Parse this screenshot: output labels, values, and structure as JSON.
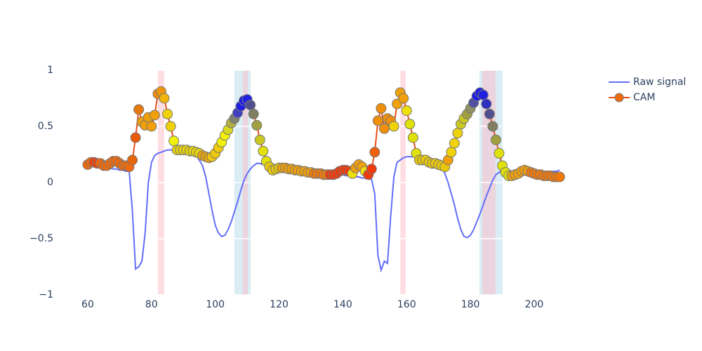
{
  "chart_data": {
    "type": "line",
    "x": [
      60,
      61,
      62,
      63,
      64,
      65,
      66,
      67,
      68,
      69,
      70,
      71,
      72,
      73,
      74,
      75,
      76,
      77,
      78,
      79,
      80,
      81,
      82,
      83,
      84,
      85,
      86,
      87,
      88,
      89,
      90,
      91,
      92,
      93,
      94,
      95,
      96,
      97,
      98,
      99,
      100,
      101,
      102,
      103,
      104,
      105,
      106,
      107,
      108,
      109,
      110,
      111,
      112,
      113,
      114,
      115,
      116,
      117,
      118,
      119,
      120,
      121,
      122,
      123,
      124,
      125,
      126,
      127,
      128,
      129,
      130,
      131,
      132,
      133,
      134,
      135,
      136,
      137,
      138,
      139,
      140,
      141,
      142,
      143,
      144,
      145,
      146,
      147,
      148,
      149,
      150,
      151,
      152,
      153,
      154,
      155,
      156,
      157,
      158,
      159,
      160,
      161,
      162,
      163,
      164,
      165,
      166,
      167,
      168,
      169,
      170,
      171,
      172,
      173,
      174,
      175,
      176,
      177,
      178,
      179,
      180,
      181,
      182,
      183,
      184,
      185,
      186,
      187,
      188,
      189,
      190,
      191,
      192,
      193,
      194,
      195,
      196,
      197,
      198,
      199,
      200,
      201,
      202,
      203,
      204,
      205,
      206,
      207,
      208
    ],
    "series": [
      {
        "name": "Raw signal",
        "color": "#636efa",
        "mode": "lines",
        "values": [
          0.17,
          0.16,
          0.16,
          0.15,
          0.15,
          0.14,
          0.13,
          0.13,
          0.12,
          0.12,
          0.11,
          0.11,
          0.1,
          0.1,
          -0.25,
          -0.77,
          -0.75,
          -0.7,
          -0.45,
          0,
          0.18,
          0.24,
          0.26,
          0.27,
          0.28,
          0.29,
          0.29,
          0.29,
          0.29,
          0.29,
          0.29,
          0.28,
          0.27,
          0.26,
          0.24,
          0.2,
          0.15,
          0.05,
          -0.1,
          -0.25,
          -0.38,
          -0.45,
          -0.48,
          -0.47,
          -0.42,
          -0.35,
          -0.26,
          -0.17,
          -0.07,
          0.02,
          0.08,
          0.12,
          0.15,
          0.17,
          0.17,
          0.16,
          0.15,
          0.14,
          0.13,
          0.13,
          0.13,
          0.12,
          0.12,
          0.12,
          0.11,
          0.11,
          0.11,
          0.1,
          0.1,
          0.1,
          0.1,
          0.09,
          0.09,
          0.09,
          0.09,
          0.08,
          0.08,
          0.08,
          0.08,
          0.08,
          0.07,
          0.06,
          0.06,
          0.05,
          0.05,
          0.05,
          0.04,
          0.04,
          0.03,
          0.03,
          -0.1,
          -0.65,
          -0.78,
          -0.7,
          -0.72,
          -0.3,
          0.05,
          0.18,
          0.2,
          0.22,
          0.23,
          0.23,
          0.23,
          0.23,
          0.23,
          0.23,
          0.22,
          0.21,
          0.2,
          0.19,
          0.17,
          0.13,
          0.08,
          0,
          -0.1,
          -0.2,
          -0.32,
          -0.42,
          -0.48,
          -0.49,
          -0.47,
          -0.42,
          -0.35,
          -0.28,
          -0.2,
          -0.12,
          -0.05,
          0.02,
          0.07,
          0.09,
          0.11,
          0.11,
          0.11,
          0.1,
          0.1,
          0.1,
          0.1,
          0.1,
          0.1,
          0.1,
          0.09,
          0.09,
          0.09,
          0.09,
          0.09,
          0.09,
          0.1,
          0.1,
          0.11
        ]
      },
      {
        "name": "CAM",
        "color": "#e8501a",
        "mode": "lines+markers",
        "marker_line_color": "#777777",
        "values": [
          0.16,
          0.18,
          0.18,
          0.17,
          0.17,
          0.15,
          0.15,
          0.17,
          0.19,
          0.19,
          0.17,
          0.15,
          0.15,
          0.14,
          0.2,
          0.4,
          0.65,
          0.54,
          0.51,
          0.58,
          0.5,
          0.6,
          0.79,
          0.81,
          0.75,
          0.61,
          0.5,
          0.37,
          0.29,
          0.29,
          0.29,
          0.29,
          0.28,
          0.28,
          0.27,
          0.26,
          0.24,
          0.23,
          0.22,
          0.23,
          0.26,
          0.31,
          0.36,
          0.42,
          0.47,
          0.53,
          0.57,
          0.62,
          0.68,
          0.73,
          0.74,
          0.69,
          0.61,
          0.51,
          0.38,
          0.28,
          0.19,
          0.14,
          0.11,
          0.12,
          0.13,
          0.13,
          0.13,
          0.12,
          0.12,
          0.11,
          0.11,
          0.1,
          0.1,
          0.09,
          0.09,
          0.08,
          0.08,
          0.08,
          0.07,
          0.07,
          0.07,
          0.07,
          0.08,
          0.1,
          0.11,
          0.11,
          0.1,
          0.08,
          0.13,
          0.16,
          0.14,
          0.1,
          0.07,
          0.12,
          0.27,
          0.55,
          0.66,
          0.48,
          0.57,
          0.55,
          0.5,
          0.7,
          0.8,
          0.75,
          0.64,
          0.52,
          0.4,
          0.26,
          0.2,
          0.2,
          0.2,
          0.18,
          0.17,
          0.17,
          0.16,
          0.15,
          0.14,
          0.2,
          0.27,
          0.35,
          0.44,
          0.52,
          0.57,
          0.61,
          0.66,
          0.71,
          0.77,
          0.8,
          0.78,
          0.7,
          0.61,
          0.5,
          0.38,
          0.26,
          0.15,
          0.09,
          0.06,
          0.06,
          0.07,
          0.08,
          0.1,
          0.11,
          0.1,
          0.09,
          0.08,
          0.07,
          0.07,
          0.06,
          0.06,
          0.06,
          0.05,
          0.05,
          0.05
        ],
        "marker_colors": [
          "#ee6a0c",
          "#ee6a0c",
          "#f0400a",
          "#f0400a",
          "#ee6a0c",
          "#ee6a0c",
          "#ee6a0c",
          "#ee6a0c",
          "#ee6a0c",
          "#ee6a0c",
          "#ee6a0c",
          "#ee6a0c",
          "#ee6a0c",
          "#ee6a0c",
          "#e8640a",
          "#e85a0a",
          "#e8780a",
          "#f0a00a",
          "#f0a00a",
          "#f0a00a",
          "#f0a00a",
          "#f0a00a",
          "#f08c0a",
          "#f0960a",
          "#f0b40a",
          "#f0d20a",
          "#f0d20a",
          "#f0f00a",
          "#e8d20a",
          "#e8d20a",
          "#e8d20a",
          "#e8d20a",
          "#e8d20a",
          "#e8d20a",
          "#e8d20a",
          "#e8d20a",
          "#e8a50a",
          "#e8a50a",
          "#e8a50a",
          "#f0c80a",
          "#f0c80a",
          "#f0c80a",
          "#f0f00a",
          "#f0f00a",
          "#d8d820",
          "#b0b040",
          "#808070",
          "#4040c0",
          "#2020e0",
          "#2020e0",
          "#2020e0",
          "#505090",
          "#808060",
          "#a0a040",
          "#c8c820",
          "#e0e00a",
          "#e0e00a",
          "#e8c80a",
          "#e8c80a",
          "#e8c80a",
          "#e8c80a",
          "#f0a00a",
          "#f0a00a",
          "#f0a00a",
          "#f0a00a",
          "#f0a00a",
          "#f0a00a",
          "#f0a00a",
          "#f0a00a",
          "#f0a00a",
          "#f0a00a",
          "#f07a0a",
          "#f07a0a",
          "#f07a0a",
          "#f07a0a",
          "#f07a0a",
          "#f03a0a",
          "#f03a0a",
          "#f03a0a",
          "#f03a0a",
          "#f03a0a",
          "#f03a0a",
          "#f03a0a",
          "#f0e00a",
          "#f0a00a",
          "#f0a00a",
          "#f0a00a",
          "#f0e00a",
          "#f03a0a",
          "#f03a0a",
          "#f0600a",
          "#f0900a",
          "#f0900a",
          "#f0900a",
          "#f0900a",
          "#f0900a",
          "#f0d20a",
          "#f0a00a",
          "#f0a00a",
          "#f0a00a",
          "#f0e00a",
          "#e0e00a",
          "#e0e00a",
          "#e0e00a",
          "#e8c80a",
          "#e8c80a",
          "#e8c80a",
          "#e8c80a",
          "#e8c80a",
          "#e8c80a",
          "#e8c80a",
          "#e8c80a",
          "#e8c80a",
          "#f0a00a",
          "#f0d20a",
          "#f0d20a",
          "#f0d20a",
          "#c8c820",
          "#c8c820",
          "#a0a040",
          "#909060",
          "#5050a0",
          "#2020e0",
          "#2020e0",
          "#2020e0",
          "#3030c0",
          "#505090",
          "#808060",
          "#a0a040",
          "#e0e00a",
          "#e0e00a",
          "#e0e00a",
          "#e0e00a",
          "#f0a00a",
          "#f0a00a",
          "#f0a00a",
          "#f0a00a",
          "#f0a00a",
          "#f0a00a",
          "#f0780a",
          "#f0780a",
          "#f0780a",
          "#f0780a",
          "#f0780a",
          "#f0780a",
          "#f0780a",
          "#f0780a",
          "#f0780a",
          "#f0780a"
        ]
      }
    ],
    "highlights": [
      {
        "x0": 82.0,
        "x1": 84.0,
        "color": "#ffb6c1"
      },
      {
        "x0": 106.0,
        "x1": 111.1,
        "color": "#add8e6"
      },
      {
        "x0": 108.6,
        "x1": 110.2,
        "color": "#ffb6c1"
      },
      {
        "x0": 158.0,
        "x1": 159.7,
        "color": "#ffb6c1"
      },
      {
        "x0": 182.8,
        "x1": 190.1,
        "color": "#add8e6"
      },
      {
        "x0": 183.7,
        "x1": 187.9,
        "color": "#ffb6c1"
      }
    ],
    "xlim": [
      50.1,
      218.5
    ],
    "ylim": [
      -1,
      1
    ],
    "xticks": [
      60,
      80,
      100,
      120,
      140,
      160,
      180,
      200
    ],
    "yticks": [
      {
        "value": -1,
        "label": "−1"
      },
      {
        "value": -0.5,
        "label": "−0.5"
      },
      0,
      0.5,
      1
    ],
    "grid": true,
    "legend": "top-right"
  }
}
